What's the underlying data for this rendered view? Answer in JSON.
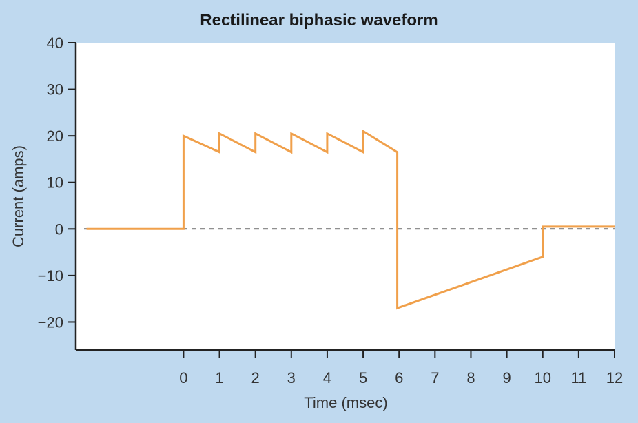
{
  "chart_data": {
    "type": "line",
    "title": "Rectilinear biphasic waveform",
    "xlabel": "Time (msec)",
    "ylabel": "Current (amps)",
    "xlim": [
      -3,
      12
    ],
    "ylim": [
      -26,
      40
    ],
    "x_ticks": [
      0,
      1,
      2,
      3,
      4,
      5,
      6,
      7,
      8,
      9,
      10,
      11,
      12
    ],
    "y_ticks": [
      40,
      30,
      20,
      10,
      0,
      -10,
      -20
    ],
    "y_tick_labels": [
      "40",
      "30",
      "20",
      "10",
      "0",
      "−10",
      "−20"
    ],
    "grid": false,
    "reference_line": {
      "y": 0,
      "style": "dashed"
    },
    "series": [
      {
        "color": "#f0a04b",
        "x": [
          -2.7,
          0,
          0,
          1,
          1,
          2,
          2,
          3,
          3,
          4,
          4,
          5,
          5,
          5.95,
          5.95,
          10,
          10,
          12
        ],
        "y": [
          0,
          0,
          20,
          16.5,
          20.5,
          16.5,
          20.5,
          16.5,
          20.5,
          16.5,
          20.5,
          16.5,
          21,
          16.5,
          -17,
          -6,
          0.5,
          0.5
        ]
      }
    ],
    "colors": {
      "line": "#f0a04b",
      "axis": "#222222",
      "plot_bg": "#ffffff",
      "page_bg": "#bfd9ef"
    }
  }
}
